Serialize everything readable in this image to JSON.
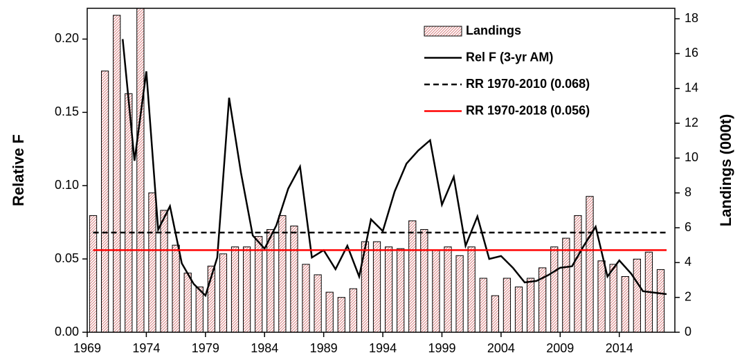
{
  "chart_data": {
    "type": "bar-line",
    "ylabel": "Relative F",
    "y2label": "Landings (000t)",
    "xlim": [
      1969,
      2018.7
    ],
    "xticks": [
      1969,
      1974,
      1979,
      1984,
      1989,
      1994,
      1999,
      2004,
      2009,
      2014
    ],
    "ylim": [
      0,
      0.221
    ],
    "yticks": [
      {
        "value": 0,
        "label": "0.00"
      },
      {
        "value": 0.05,
        "label": "0.05"
      },
      {
        "value": 0.1,
        "label": "0.10"
      },
      {
        "value": 0.15,
        "label": "0.15"
      },
      {
        "value": 0.2,
        "label": "0.20"
      }
    ],
    "y2lim": [
      0,
      18.6
    ],
    "y2ticks": [
      0,
      2,
      4,
      6,
      8,
      10,
      12,
      14,
      16,
      18
    ],
    "legend": "upper right",
    "series": [
      {
        "name": "Landings",
        "type": "bar",
        "axis": "y2",
        "color": "#d9534f",
        "x": [
          1970,
          1971,
          1972,
          1973,
          1974,
          1975,
          1976,
          1977,
          1978,
          1979,
          1980,
          1981,
          1982,
          1983,
          1984,
          1985,
          1986,
          1987,
          1988,
          1989,
          1990,
          1991,
          1992,
          1993,
          1994,
          1995,
          1996,
          1997,
          1998,
          1999,
          2000,
          2001,
          2002,
          2003,
          2004,
          2005,
          2006,
          2007,
          2008,
          2009,
          2010,
          2011,
          2012,
          2013,
          2014,
          2015,
          2016,
          2017,
          2018
        ],
        "values": [
          6.7,
          15.0,
          18.2,
          13.7,
          19.0,
          8.0,
          7.0,
          5.0,
          3.4,
          2.6,
          3.8,
          4.5,
          4.9,
          4.9,
          5.5,
          5.9,
          6.7,
          6.1,
          3.9,
          3.3,
          2.3,
          2.0,
          2.5,
          5.2,
          5.2,
          4.9,
          4.8,
          6.4,
          5.9,
          4.7,
          4.9,
          4.4,
          4.9,
          3.1,
          2.1,
          3.1,
          2.6,
          3.1,
          3.7,
          4.9,
          5.4,
          6.7,
          7.8,
          4.1,
          3.9,
          3.2,
          4.2,
          4.6,
          3.6
        ]
      },
      {
        "name": "Rel F (3-yr AM)",
        "type": "line",
        "color": "#000000",
        "x": [
          1972,
          1973,
          1974,
          1975,
          1976,
          1977,
          1978,
          1979,
          1980,
          1981,
          1982,
          1983,
          1984,
          1985,
          1986,
          1987,
          1988,
          1989,
          1990,
          1991,
          1992,
          1993,
          1994,
          1995,
          1996,
          1997,
          1998,
          1999,
          2000,
          2001,
          2002,
          2003,
          2004,
          2005,
          2006,
          2007,
          2008,
          2009,
          2010,
          2011,
          2012,
          2013,
          2014,
          2015,
          2016,
          2017,
          2018
        ],
        "values": [
          0.2,
          0.117,
          0.178,
          0.07,
          0.086,
          0.047,
          0.033,
          0.025,
          0.051,
          0.16,
          0.109,
          0.066,
          0.057,
          0.073,
          0.098,
          0.113,
          0.051,
          0.056,
          0.043,
          0.059,
          0.038,
          0.077,
          0.069,
          0.096,
          0.115,
          0.124,
          0.131,
          0.087,
          0.106,
          0.059,
          0.079,
          0.05,
          0.052,
          0.044,
          0.034,
          0.035,
          0.039,
          0.044,
          0.045,
          0.059,
          0.072,
          0.038,
          0.049,
          0.04,
          0.028,
          0.027,
          0.026
        ]
      },
      {
        "name": "RR 1970-2010 (0.068)",
        "type": "hline",
        "color": "#000000",
        "dashed": true,
        "x": [
          1970,
          2018
        ],
        "value": 0.068
      },
      {
        "name": "RR 1970-2018 (0.056)",
        "type": "hline",
        "color": "#ff0000",
        "dashed": false,
        "x": [
          1970,
          2018
        ],
        "value": 0.056
      }
    ]
  }
}
